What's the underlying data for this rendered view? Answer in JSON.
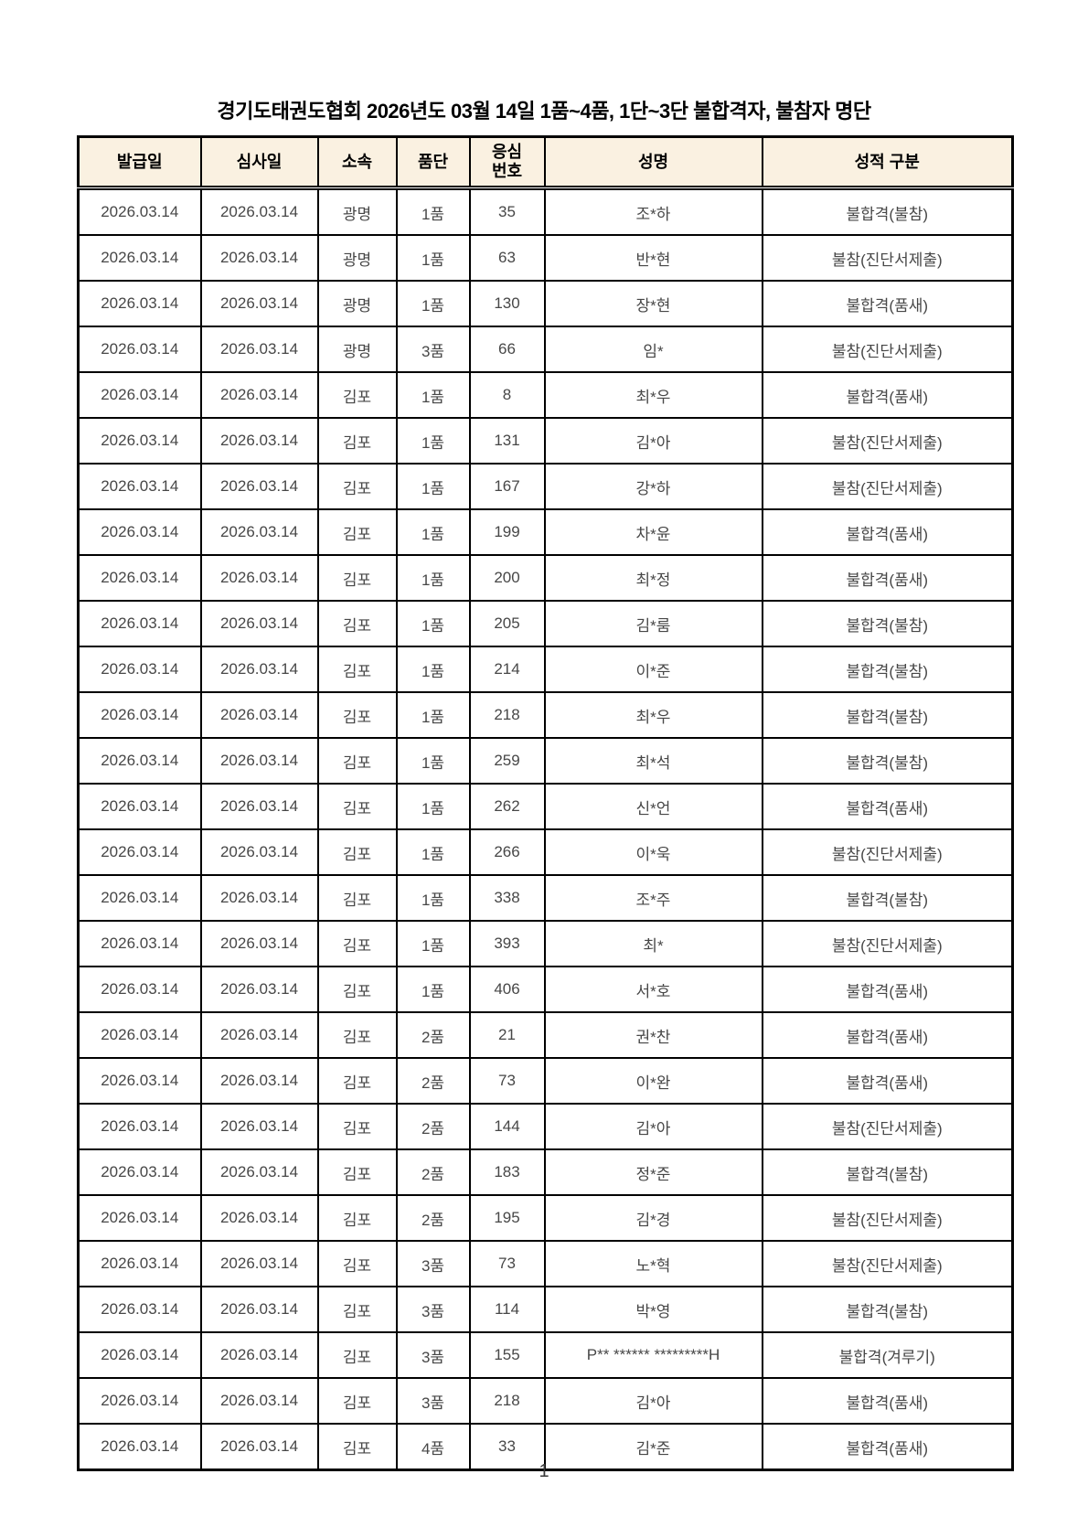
{
  "page": {
    "title": "경기도태권도협회 2026년도 03월 14일 1품~4품, 1단~3단 불합격자, 불참자 명단",
    "page_number": "1"
  },
  "colors": {
    "header_background": "#faf1e1",
    "table_border": "#000000",
    "body_text": "#474747"
  },
  "table": {
    "headers": [
      "발급일",
      "심사일",
      "소속",
      "품단",
      "응심\n번호",
      "성명",
      "성적 구분"
    ],
    "rows": [
      [
        "2026.03.14",
        "2026.03.14",
        "광명",
        "1품",
        "35",
        "조*하",
        "불합격(불참)"
      ],
      [
        "2026.03.14",
        "2026.03.14",
        "광명",
        "1품",
        "63",
        "반*현",
        "불참(진단서제출)"
      ],
      [
        "2026.03.14",
        "2026.03.14",
        "광명",
        "1품",
        "130",
        "장*현",
        "불합격(품새)"
      ],
      [
        "2026.03.14",
        "2026.03.14",
        "광명",
        "3품",
        "66",
        "임*",
        "불참(진단서제출)"
      ],
      [
        "2026.03.14",
        "2026.03.14",
        "김포",
        "1품",
        "8",
        "최*우",
        "불합격(품새)"
      ],
      [
        "2026.03.14",
        "2026.03.14",
        "김포",
        "1품",
        "131",
        "김*아",
        "불참(진단서제출)"
      ],
      [
        "2026.03.14",
        "2026.03.14",
        "김포",
        "1품",
        "167",
        "강*하",
        "불참(진단서제출)"
      ],
      [
        "2026.03.14",
        "2026.03.14",
        "김포",
        "1품",
        "199",
        "차*윤",
        "불합격(품새)"
      ],
      [
        "2026.03.14",
        "2026.03.14",
        "김포",
        "1품",
        "200",
        "최*정",
        "불합격(품새)"
      ],
      [
        "2026.03.14",
        "2026.03.14",
        "김포",
        "1품",
        "205",
        "김*룸",
        "불합격(불참)"
      ],
      [
        "2026.03.14",
        "2026.03.14",
        "김포",
        "1품",
        "214",
        "이*준",
        "불합격(불참)"
      ],
      [
        "2026.03.14",
        "2026.03.14",
        "김포",
        "1품",
        "218",
        "최*우",
        "불합격(불참)"
      ],
      [
        "2026.03.14",
        "2026.03.14",
        "김포",
        "1품",
        "259",
        "최*석",
        "불합격(불참)"
      ],
      [
        "2026.03.14",
        "2026.03.14",
        "김포",
        "1품",
        "262",
        "신*언",
        "불합격(품새)"
      ],
      [
        "2026.03.14",
        "2026.03.14",
        "김포",
        "1품",
        "266",
        "이*욱",
        "불참(진단서제출)"
      ],
      [
        "2026.03.14",
        "2026.03.14",
        "김포",
        "1품",
        "338",
        "조*주",
        "불합격(불참)"
      ],
      [
        "2026.03.14",
        "2026.03.14",
        "김포",
        "1품",
        "393",
        "최*",
        "불참(진단서제출)"
      ],
      [
        "2026.03.14",
        "2026.03.14",
        "김포",
        "1품",
        "406",
        "서*호",
        "불합격(품새)"
      ],
      [
        "2026.03.14",
        "2026.03.14",
        "김포",
        "2품",
        "21",
        "권*찬",
        "불합격(품새)"
      ],
      [
        "2026.03.14",
        "2026.03.14",
        "김포",
        "2품",
        "73",
        "이*완",
        "불합격(품새)"
      ],
      [
        "2026.03.14",
        "2026.03.14",
        "김포",
        "2품",
        "144",
        "김*아",
        "불참(진단서제출)"
      ],
      [
        "2026.03.14",
        "2026.03.14",
        "김포",
        "2품",
        "183",
        "정*준",
        "불합격(불참)"
      ],
      [
        "2026.03.14",
        "2026.03.14",
        "김포",
        "2품",
        "195",
        "김*경",
        "불참(진단서제출)"
      ],
      [
        "2026.03.14",
        "2026.03.14",
        "김포",
        "3품",
        "73",
        "노*혁",
        "불참(진단서제출)"
      ],
      [
        "2026.03.14",
        "2026.03.14",
        "김포",
        "3품",
        "114",
        "박*영",
        "불합격(불참)"
      ],
      [
        "2026.03.14",
        "2026.03.14",
        "김포",
        "3품",
        "155",
        "P** ****** *********H",
        "불합격(겨루기)"
      ],
      [
        "2026.03.14",
        "2026.03.14",
        "김포",
        "3품",
        "218",
        "김*아",
        "불합격(품새)"
      ],
      [
        "2026.03.14",
        "2026.03.14",
        "김포",
        "4품",
        "33",
        "김*준",
        "불합격(품새)"
      ]
    ]
  }
}
